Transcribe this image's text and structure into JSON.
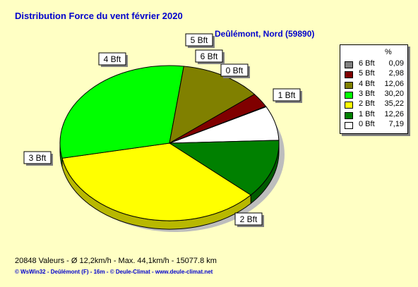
{
  "title": "Distribution Force du vent  février 2020",
  "subtitle": "Deûlémont, Nord (59890)",
  "footer": {
    "stats": "20848 Valeurs   -   Ø 12,2km/h   -  Max. 44,1km/h   -   15077.8 km",
    "credits": "© WsWin32   -   Deûlémont (F) - 16m   -  © Deule-Climat - www.deule-climat.net"
  },
  "legend": {
    "header": "%",
    "entries": [
      {
        "label": "6 Bft",
        "value": "0,09",
        "color": "#808080"
      },
      {
        "label": "5 Bft",
        "value": "2,98",
        "color": "#800000"
      },
      {
        "label": "4 Bft",
        "value": "12,06",
        "color": "#808000"
      },
      {
        "label": "3 Bft",
        "value": "30,20",
        "color": "#00ff00"
      },
      {
        "label": "2 Bft",
        "value": "35,22",
        "color": "#ffff00"
      },
      {
        "label": "1 Bft",
        "value": "12,26",
        "color": "#008000"
      },
      {
        "label": "0 Bft",
        "value": "7,19",
        "color": "#ffffff"
      }
    ]
  },
  "chart_data": {
    "type": "pie",
    "title": "Distribution Force du vent  février 2020",
    "subtitle": "Deûlémont, Nord (59890)",
    "unit": "%",
    "legend_position": "right",
    "slices": [
      {
        "label": "0 Bft",
        "value": 7.19,
        "color": "#ffffff"
      },
      {
        "label": "1 Bft",
        "value": 12.26,
        "color": "#008000"
      },
      {
        "label": "2 Bft",
        "value": 35.22,
        "color": "#ffff00"
      },
      {
        "label": "3 Bft",
        "value": 30.2,
        "color": "#00ff00"
      },
      {
        "label": "4 Bft",
        "value": 12.06,
        "color": "#808000"
      },
      {
        "label": "5 Bft",
        "value": 2.98,
        "color": "#800000"
      },
      {
        "label": "6 Bft",
        "value": 0.09,
        "color": "#808080"
      }
    ]
  }
}
